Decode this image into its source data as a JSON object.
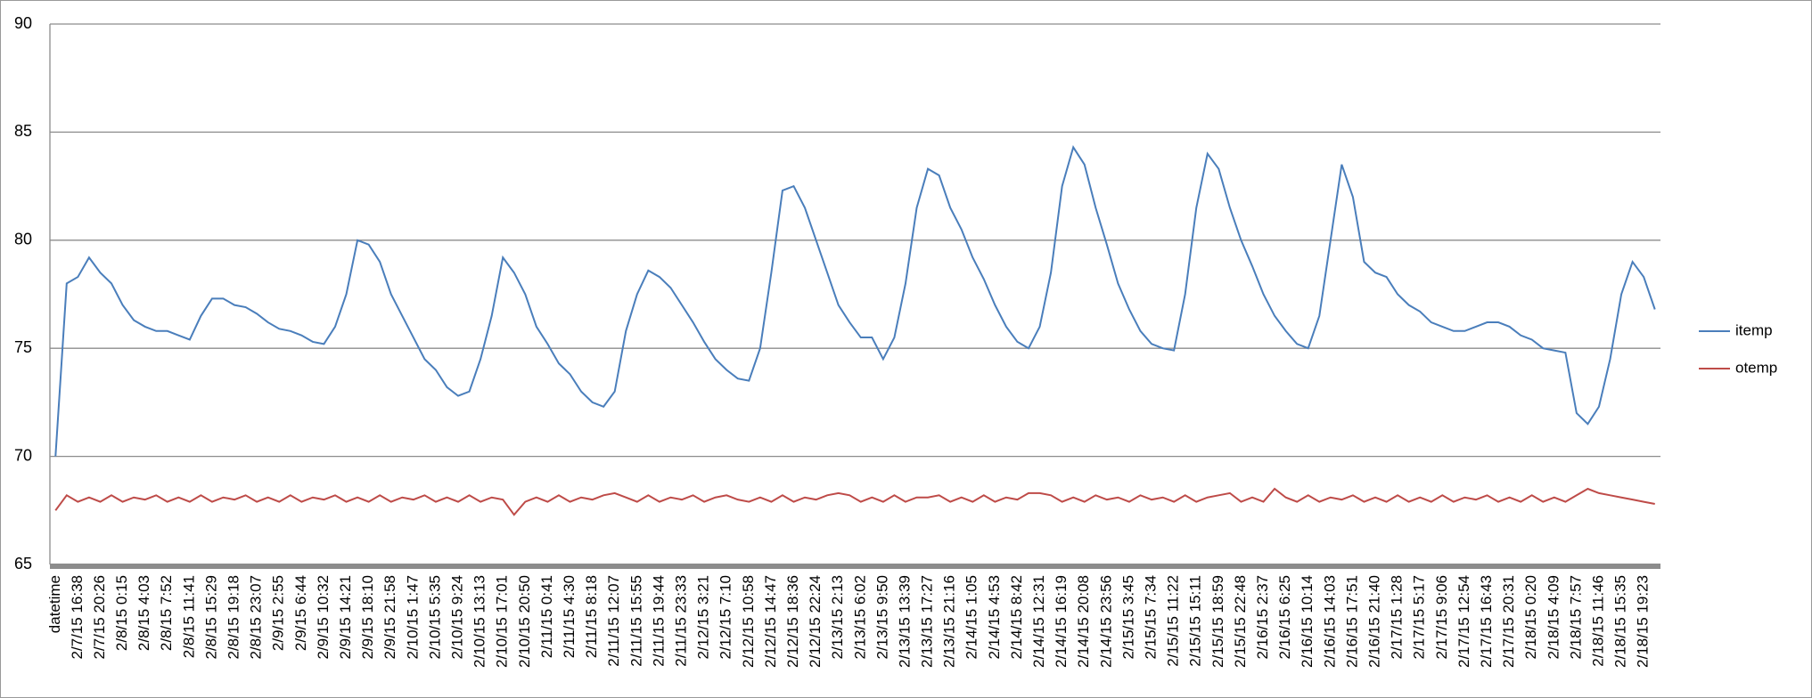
{
  "chart_data": {
    "type": "line",
    "categories": [
      "datetime",
      null,
      "2/7/15 16:38",
      null,
      "2/7/15 20:26",
      null,
      "2/8/15 0:15",
      null,
      "2/8/15 4:03",
      null,
      "2/8/15 7:52",
      null,
      "2/8/15 11:41",
      null,
      "2/8/15 15:29",
      null,
      "2/8/15 19:18",
      null,
      "2/8/15 23:07",
      null,
      "2/9/15 2:55",
      null,
      "2/9/15 6:44",
      null,
      "2/9/15 10:32",
      null,
      "2/9/15 14:21",
      null,
      "2/9/15 18:10",
      null,
      "2/9/15 21:58",
      null,
      "2/10/15 1:47",
      null,
      "2/10/15 5:35",
      null,
      "2/10/15 9:24",
      null,
      "2/10/15 13:13",
      null,
      "2/10/15 17:01",
      null,
      "2/10/15 20:50",
      null,
      "2/11/15 0:41",
      null,
      "2/11/15 4:30",
      null,
      "2/11/15 8:18",
      null,
      "2/11/15 12:07",
      null,
      "2/11/15 15:55",
      null,
      "2/11/15 19:44",
      null,
      "2/11/15 23:33",
      null,
      "2/12/15 3:21",
      null,
      "2/12/15 7:10",
      null,
      "2/12/15 10:58",
      null,
      "2/12/15 14:47",
      null,
      "2/12/15 18:36",
      null,
      "2/12/15 22:24",
      null,
      "2/13/15 2:13",
      null,
      "2/13/15 6:02",
      null,
      "2/13/15 9:50",
      null,
      "2/13/15 13:39",
      null,
      "2/13/15 17:27",
      null,
      "2/13/15 21:16",
      null,
      "2/14/15 1:05",
      null,
      "2/14/15 4:53",
      null,
      "2/14/15 8:42",
      null,
      "2/14/15 12:31",
      null,
      "2/14/15 16:19",
      null,
      "2/14/15 20:08",
      null,
      "2/14/15 23:56",
      null,
      "2/15/15 3:45",
      null,
      "2/15/15 7:34",
      null,
      "2/15/15 11:22",
      null,
      "2/15/15 15:11",
      null,
      "2/15/15 18:59",
      null,
      "2/15/15 22:48",
      null,
      "2/16/15 2:37",
      null,
      "2/16/15 6:25",
      null,
      "2/16/15 10:14",
      null,
      "2/16/15 14:03",
      null,
      "2/16/15 17:51",
      null,
      "2/16/15 21:40",
      null,
      "2/17/15 1:28",
      null,
      "2/17/15 5:17",
      null,
      "2/17/15 9:06",
      null,
      "2/17/15 12:54",
      null,
      "2/17/15 16:43",
      null,
      "2/17/15 20:31",
      null,
      "2/18/15 0:20",
      null,
      "2/18/15 4:09",
      null,
      "2/18/15 7:57",
      null,
      "2/18/15 11:46",
      null,
      "2/18/15 15:35",
      null,
      "2/18/15 19:23",
      null
    ],
    "series": [
      {
        "name": "itemp",
        "color": "#4a7ebb",
        "values": [
          70,
          78,
          78.3,
          79.2,
          78.5,
          78,
          77,
          76.3,
          76,
          75.8,
          75.8,
          75.6,
          75.4,
          76.5,
          77.3,
          77.3,
          77,
          76.9,
          76.6,
          76.2,
          75.9,
          75.8,
          75.6,
          75.3,
          75.2,
          76,
          77.5,
          80,
          79.8,
          79,
          77.5,
          76.5,
          75.5,
          74.5,
          74,
          73.2,
          72.8,
          73,
          74.5,
          76.5,
          79.2,
          78.5,
          77.5,
          76,
          75.2,
          74.3,
          73.8,
          73,
          72.5,
          72.3,
          73,
          75.8,
          77.5,
          78.6,
          78.3,
          77.8,
          77,
          76.2,
          75.3,
          74.5,
          74,
          73.6,
          73.5,
          75,
          78.5,
          82.3,
          82.5,
          81.5,
          80,
          78.5,
          77,
          76.2,
          75.5,
          75.5,
          74.5,
          75.5,
          78,
          81.5,
          83.3,
          83,
          81.5,
          80.5,
          79.2,
          78.2,
          77,
          76,
          75.3,
          75,
          76,
          78.5,
          82.5,
          84.3,
          83.5,
          81.5,
          79.8,
          78,
          76.8,
          75.8,
          75.2,
          75,
          74.9,
          77.5,
          81.5,
          84,
          83.3,
          81.5,
          80,
          78.8,
          77.5,
          76.5,
          75.8,
          75.2,
          75,
          76.5,
          80,
          83.5,
          82,
          79,
          78.5,
          78.3,
          77.5,
          77,
          76.7,
          76.2,
          76,
          75.8,
          75.8,
          76,
          76.2,
          76.2,
          76,
          75.6,
          75.4,
          75,
          74.9,
          74.8,
          72,
          71.5,
          72.3,
          74.5,
          77.5,
          79,
          78.3,
          76.8
        ]
      },
      {
        "name": "otemp",
        "color": "#be4b48",
        "values": [
          67.5,
          68.2,
          67.9,
          68.1,
          67.9,
          68.2,
          67.9,
          68.1,
          68,
          68.2,
          67.9,
          68.1,
          67.9,
          68.2,
          67.9,
          68.1,
          68,
          68.2,
          67.9,
          68.1,
          67.9,
          68.2,
          67.9,
          68.1,
          68,
          68.2,
          67.9,
          68.1,
          67.9,
          68.2,
          67.9,
          68.1,
          68,
          68.2,
          67.9,
          68.1,
          67.9,
          68.2,
          67.9,
          68.1,
          68,
          67.3,
          67.9,
          68.1,
          67.9,
          68.2,
          67.9,
          68.1,
          68,
          68.2,
          68.3,
          68.1,
          67.9,
          68.2,
          67.9,
          68.1,
          68,
          68.2,
          67.9,
          68.1,
          68.2,
          68,
          67.9,
          68.1,
          67.9,
          68.2,
          67.9,
          68.1,
          68,
          68.2,
          68.3,
          68.2,
          67.9,
          68.1,
          67.9,
          68.2,
          67.9,
          68.1,
          68.1,
          68.2,
          67.9,
          68.1,
          67.9,
          68.2,
          67.9,
          68.1,
          68,
          68.3,
          68.3,
          68.2,
          67.9,
          68.1,
          67.9,
          68.2,
          68,
          68.1,
          67.9,
          68.2,
          68,
          68.1,
          67.9,
          68.2,
          67.9,
          68.1,
          68.2,
          68.3,
          67.9,
          68.1,
          67.9,
          68.5,
          68.1,
          67.9,
          68.2,
          67.9,
          68.1,
          68,
          68.2,
          67.9,
          68.1,
          67.9,
          68.2,
          67.9,
          68.1,
          67.9,
          68.2,
          67.9,
          68.1,
          68,
          68.2,
          67.9,
          68.1,
          67.9,
          68.2,
          67.9,
          68.1,
          67.9,
          68.2,
          68.5,
          68.3,
          68.2,
          68.1,
          68,
          67.9,
          67.8
        ]
      }
    ],
    "ylim": [
      65,
      90
    ],
    "yticks": [
      65,
      70,
      75,
      80,
      85,
      90
    ],
    "grid": true,
    "legend": "right"
  }
}
